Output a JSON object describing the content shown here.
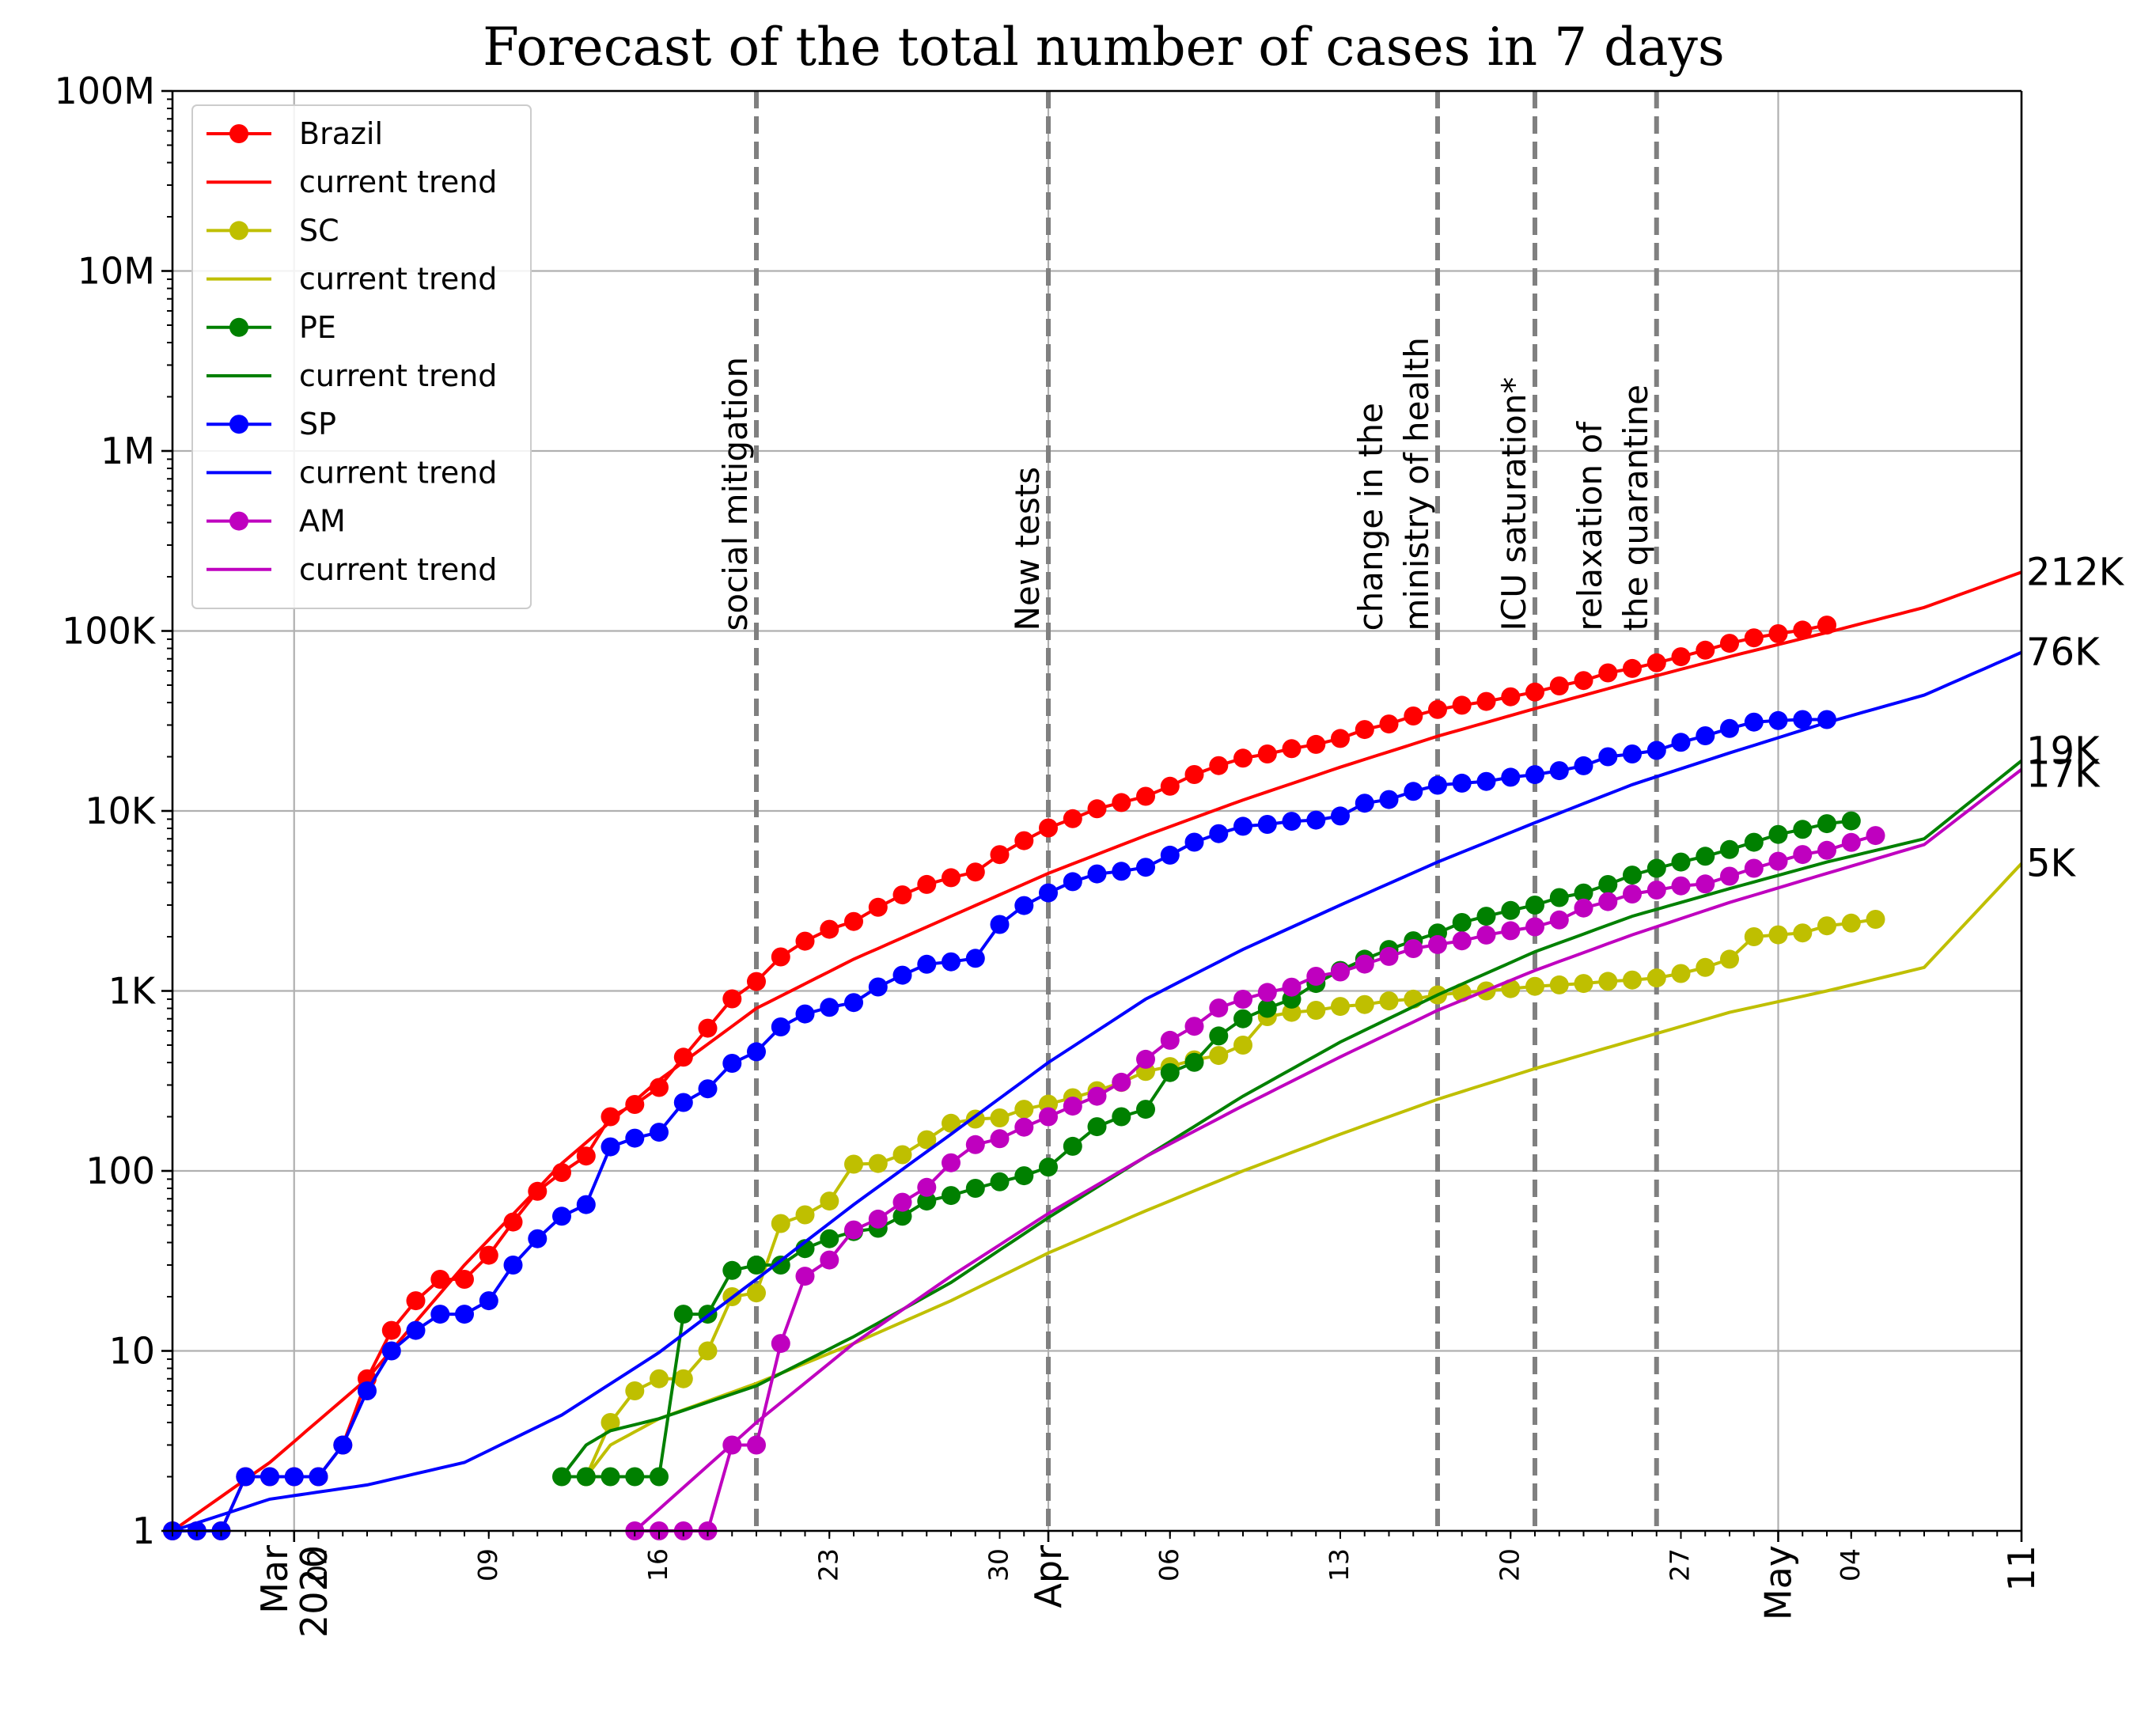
{
  "chart_data": {
    "type": "line",
    "title": "Forecast of the total number of cases in 7 days",
    "xlabel": "",
    "ylabel": "",
    "x_range": [
      "2020-02-25",
      "2020-05-11"
    ],
    "y_scale": "log",
    "ylim": [
      1,
      100000000
    ],
    "grid": true,
    "legend_position": "top-left",
    "y_ticks": [
      {
        "value": 1,
        "label": "1"
      },
      {
        "value": 10,
        "label": "10"
      },
      {
        "value": 100,
        "label": "100"
      },
      {
        "value": 1000,
        "label": "1K"
      },
      {
        "value": 10000,
        "label": "10K"
      },
      {
        "value": 100000,
        "label": "100K"
      },
      {
        "value": 1000000,
        "label": "1M"
      },
      {
        "value": 10000000,
        "label": "10M"
      },
      {
        "value": 100000000,
        "label": "100M"
      }
    ],
    "x_ticks_major": [
      {
        "date": "2020-03-01",
        "label": "Mar\n2020"
      },
      {
        "date": "2020-04-01",
        "label": "Apr"
      },
      {
        "date": "2020-05-01",
        "label": "May"
      },
      {
        "date": "2020-05-11",
        "label": "11"
      }
    ],
    "x_ticks_minor": [
      {
        "date": "2020-03-02",
        "label": "02"
      },
      {
        "date": "2020-03-09",
        "label": "09"
      },
      {
        "date": "2020-03-16",
        "label": "16"
      },
      {
        "date": "2020-03-23",
        "label": "23"
      },
      {
        "date": "2020-03-30",
        "label": "30"
      },
      {
        "date": "2020-04-06",
        "label": "06"
      },
      {
        "date": "2020-04-13",
        "label": "13"
      },
      {
        "date": "2020-04-20",
        "label": "20"
      },
      {
        "date": "2020-04-27",
        "label": "27"
      },
      {
        "date": "2020-05-04",
        "label": "04"
      }
    ],
    "events": [
      {
        "date": "2020-03-20",
        "label": "social mitigation"
      },
      {
        "date": "2020-04-01",
        "label": "New tests"
      },
      {
        "date": "2020-04-17",
        "label": "change in the\nministry of health"
      },
      {
        "date": "2020-04-21",
        "label": "ICU saturation*"
      },
      {
        "date": "2020-04-26",
        "label": "relaxation of\nthe quarantine"
      }
    ],
    "end_labels": [
      "212K",
      "76K",
      "19K",
      "17K",
      "5K"
    ],
    "series": [
      {
        "name": "Brazil",
        "color": "#ff0000",
        "kind": "observed",
        "start_date": "2020-02-25",
        "values": [
          1,
          1,
          1,
          2,
          2,
          2,
          2,
          3,
          7,
          13,
          19,
          25,
          25,
          34,
          52,
          77,
          98,
          121,
          200,
          234,
          291,
          428,
          621,
          904,
          1128,
          1546,
          1891,
          2201,
          2433,
          2915,
          3417,
          3904,
          4256,
          4579,
          5717,
          6836,
          8044,
          9056,
          10278,
          11130,
          12056,
          13717,
          15927,
          17857,
          19638,
          20727,
          22169,
          23430,
          25262,
          28320,
          30425,
          33682,
          36599,
          38654,
          40581,
          43079,
          45757,
          49492,
          52995,
          58509,
          61888,
          66501,
          71886,
          78162,
          85380,
          91589,
          96559,
          101147,
          107780
        ]
      },
      {
        "name": "current trend",
        "color": "#ff0000",
        "kind": "trend",
        "start_date": "2020-02-25",
        "anchors": [
          [
            0,
            1
          ],
          [
            4,
            2.4
          ],
          [
            8,
            7
          ],
          [
            12,
            30
          ],
          [
            16,
            110
          ],
          [
            20,
            320
          ],
          [
            24,
            800
          ],
          [
            28,
            1500
          ],
          [
            32,
            2600
          ],
          [
            36,
            4500
          ],
          [
            40,
            7300
          ],
          [
            44,
            11500
          ],
          [
            48,
            17500
          ],
          [
            52,
            26000
          ],
          [
            56,
            37000
          ],
          [
            60,
            52000
          ],
          [
            64,
            72000
          ],
          [
            68,
            98000
          ],
          [
            72,
            135000
          ],
          [
            76,
            212000
          ]
        ]
      },
      {
        "name": "SC",
        "color": "#bfbf00",
        "kind": "observed",
        "start_date": "2020-03-13",
        "values": [
          2,
          4,
          6,
          7,
          7,
          10,
          20,
          21,
          51,
          57,
          68,
          109,
          110,
          123,
          149,
          184,
          194,
          197,
          220,
          235,
          255,
          279,
          310,
          357,
          380,
          414,
          438,
          500,
          720,
          760,
          780,
          820,
          840,
          880,
          900,
          950,
          980,
          1000,
          1030,
          1060,
          1080,
          1100,
          1130,
          1150,
          1180,
          1250,
          1350,
          1500,
          2000,
          2050,
          2100,
          2300,
          2380,
          2500
        ]
      },
      {
        "name": "current trend",
        "color": "#bfbf00",
        "kind": "trend",
        "start_date": "2020-02-25",
        "anchors": [
          [
            17,
            2
          ],
          [
            18,
            3
          ],
          [
            20,
            4.2
          ],
          [
            24,
            6.6
          ],
          [
            28,
            11
          ],
          [
            32,
            19
          ],
          [
            36,
            35
          ],
          [
            40,
            60
          ],
          [
            44,
            100
          ],
          [
            48,
            160
          ],
          [
            52,
            250
          ],
          [
            56,
            370
          ],
          [
            60,
            530
          ],
          [
            64,
            760
          ],
          [
            68,
            1000
          ],
          [
            72,
            1350
          ],
          [
            76,
            5100
          ]
        ]
      },
      {
        "name": "PE",
        "color": "#008000",
        "kind": "observed",
        "start_date": "2020-03-12",
        "values": [
          2,
          2,
          2,
          2,
          2,
          16,
          16,
          28,
          30,
          30,
          37,
          42,
          46,
          48,
          56,
          68,
          73,
          80,
          87,
          94,
          105,
          137,
          176,
          200,
          220,
          352,
          401,
          562,
          700,
          800,
          900,
          1100,
          1300,
          1500,
          1700,
          1900,
          2100,
          2400,
          2600,
          2800,
          3000,
          3300,
          3500,
          3900,
          4400,
          4800,
          5200,
          5600,
          6100,
          6700,
          7400,
          7900,
          8500,
          8800
        ]
      },
      {
        "name": "current trend",
        "color": "#008000",
        "kind": "trend",
        "start_date": "2020-02-25",
        "anchors": [
          [
            16,
            2
          ],
          [
            17,
            3
          ],
          [
            18,
            3.6
          ],
          [
            20,
            4.2
          ],
          [
            24,
            6.4
          ],
          [
            28,
            12
          ],
          [
            32,
            24
          ],
          [
            36,
            55
          ],
          [
            40,
            120
          ],
          [
            44,
            260
          ],
          [
            48,
            520
          ],
          [
            52,
            950
          ],
          [
            56,
            1650
          ],
          [
            60,
            2600
          ],
          [
            64,
            3700
          ],
          [
            68,
            5200
          ],
          [
            72,
            7000
          ],
          [
            76,
            19000
          ]
        ]
      },
      {
        "name": "SP",
        "color": "#0000ff",
        "kind": "observed",
        "start_date": "2020-02-25",
        "values": [
          1,
          1,
          1,
          2,
          2,
          2,
          2,
          3,
          6,
          10,
          13,
          16,
          16,
          19,
          30,
          42,
          56,
          65,
          136,
          152,
          164,
          240,
          286,
          396,
          459,
          631,
          745,
          810,
          862,
          1052,
          1223,
          1406,
          1451,
          1517,
          2339,
          2981,
          3506,
          4048,
          4466,
          4620,
          4866,
          5682,
          6708,
          7480,
          8216,
          8419,
          8755,
          8895,
          9371,
          11043,
          11568,
          12841,
          13894,
          14267,
          14580,
          15385,
          15914,
          16740,
          17826,
          20004,
          20715,
          21696,
          24041,
          26158,
          28698,
          31174,
          31772,
          32187,
          32187
        ]
      },
      {
        "name": "current trend",
        "color": "#0000ff",
        "kind": "trend",
        "start_date": "2020-02-25",
        "anchors": [
          [
            0,
            1
          ],
          [
            4,
            1.5
          ],
          [
            8,
            1.8
          ],
          [
            12,
            2.4
          ],
          [
            16,
            4.4
          ],
          [
            20,
            9.8
          ],
          [
            24,
            25
          ],
          [
            28,
            65
          ],
          [
            32,
            160
          ],
          [
            36,
            400
          ],
          [
            40,
            900
          ],
          [
            44,
            1700
          ],
          [
            48,
            3000
          ],
          [
            52,
            5200
          ],
          [
            56,
            8600
          ],
          [
            60,
            14000
          ],
          [
            64,
            21000
          ],
          [
            68,
            31000
          ],
          [
            72,
            44000
          ],
          [
            76,
            76000
          ]
        ]
      },
      {
        "name": "AM",
        "color": "#bf00bf",
        "kind": "observed",
        "start_date": "2020-03-15",
        "values": [
          1,
          1,
          1,
          1,
          3,
          3,
          11,
          26,
          32,
          47,
          54,
          67,
          81,
          111,
          140,
          151,
          175,
          200,
          229,
          260,
          311,
          417,
          532,
          636,
          804,
          899,
          981,
          1050,
          1206,
          1275,
          1410,
          1554,
          1719,
          1809,
          1897,
          2044,
          2160,
          2270,
          2479,
          2888,
          3135,
          3455,
          3635,
          3833,
          3928,
          4337,
          4801,
          5254,
          5723,
          6038,
          6683,
          7300
        ]
      },
      {
        "name": "current trend",
        "color": "#bf00bf",
        "kind": "trend",
        "start_date": "2020-02-25",
        "anchors": [
          [
            19,
            1
          ],
          [
            24,
            4
          ],
          [
            28,
            11
          ],
          [
            32,
            26
          ],
          [
            36,
            58
          ],
          [
            40,
            120
          ],
          [
            44,
            230
          ],
          [
            48,
            430
          ],
          [
            52,
            780
          ],
          [
            56,
            1300
          ],
          [
            60,
            2050
          ],
          [
            64,
            3100
          ],
          [
            68,
            4500
          ],
          [
            72,
            6500
          ],
          [
            76,
            17000
          ]
        ]
      }
    ]
  }
}
